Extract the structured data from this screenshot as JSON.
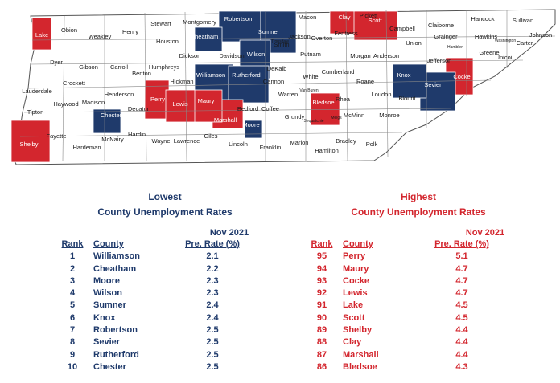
{
  "colors": {
    "lowest": "#1f3a6b",
    "highest": "#d3262e",
    "neutral": "#ffffff",
    "border": "#555555"
  },
  "map": {
    "counties": [
      {
        "name": "Lake",
        "group": "high"
      },
      {
        "name": "Obion",
        "group": "none"
      },
      {
        "name": "Weakley",
        "group": "none"
      },
      {
        "name": "Henry",
        "group": "none"
      },
      {
        "name": "Stewart",
        "group": "none"
      },
      {
        "name": "Montgomery",
        "group": "none"
      },
      {
        "name": "Robertson",
        "group": "low"
      },
      {
        "name": "Sumner",
        "group": "low"
      },
      {
        "name": "Macon",
        "group": "none"
      },
      {
        "name": "Clay",
        "group": "high"
      },
      {
        "name": "Pickett",
        "group": "none"
      },
      {
        "name": "Scott",
        "group": "high"
      },
      {
        "name": "Campbell",
        "group": "none"
      },
      {
        "name": "Claiborne",
        "group": "none"
      },
      {
        "name": "Hancock",
        "group": "none"
      },
      {
        "name": "Hawkins",
        "group": "none"
      },
      {
        "name": "Sullivan",
        "group": "none"
      },
      {
        "name": "Washington",
        "group": "none"
      },
      {
        "name": "Johnson",
        "group": "none"
      },
      {
        "name": "Carter",
        "group": "none"
      },
      {
        "name": "Unicoi",
        "group": "none"
      },
      {
        "name": "Greene",
        "group": "none"
      },
      {
        "name": "Hamblen",
        "group": "none"
      },
      {
        "name": "Grainger",
        "group": "none"
      },
      {
        "name": "Union",
        "group": "none"
      },
      {
        "name": "Jefferson",
        "group": "none"
      },
      {
        "name": "Cocke",
        "group": "high"
      },
      {
        "name": "Sevier",
        "group": "low"
      },
      {
        "name": "Knox",
        "group": "low"
      },
      {
        "name": "Anderson",
        "group": "none"
      },
      {
        "name": "Blount",
        "group": "none"
      },
      {
        "name": "Loudon",
        "group": "none"
      },
      {
        "name": "Monroe",
        "group": "none"
      },
      {
        "name": "Roane",
        "group": "none"
      },
      {
        "name": "Morgan",
        "group": "none"
      },
      {
        "name": "Fentress",
        "group": "none"
      },
      {
        "name": "Overton",
        "group": "none"
      },
      {
        "name": "Jackson",
        "group": "none"
      },
      {
        "name": "Trousdale",
        "group": "none"
      },
      {
        "name": "Smith",
        "group": "none"
      },
      {
        "name": "Putnam",
        "group": "none"
      },
      {
        "name": "Cumberland",
        "group": "none"
      },
      {
        "name": "White",
        "group": "none"
      },
      {
        "name": "DeKalb",
        "group": "none"
      },
      {
        "name": "Wilson",
        "group": "low"
      },
      {
        "name": "Davidson",
        "group": "none"
      },
      {
        "name": "Cheatham",
        "group": "low"
      },
      {
        "name": "Dickson",
        "group": "none"
      },
      {
        "name": "Houston",
        "group": "none"
      },
      {
        "name": "Humphreys",
        "group": "none"
      },
      {
        "name": "Benton",
        "group": "none"
      },
      {
        "name": "Carroll",
        "group": "none"
      },
      {
        "name": "Gibson",
        "group": "none"
      },
      {
        "name": "Dyer",
        "group": "none"
      },
      {
        "name": "Lauderdale",
        "group": "none"
      },
      {
        "name": "Crockett",
        "group": "none"
      },
      {
        "name": "Haywood",
        "group": "none"
      },
      {
        "name": "Madison",
        "group": "none"
      },
      {
        "name": "Henderson",
        "group": "none"
      },
      {
        "name": "Decatur",
        "group": "none"
      },
      {
        "name": "Perry",
        "group": "high"
      },
      {
        "name": "Hickman",
        "group": "none"
      },
      {
        "name": "Williamson",
        "group": "low"
      },
      {
        "name": "Rutherford",
        "group": "low"
      },
      {
        "name": "Cannon",
        "group": "none"
      },
      {
        "name": "Warren",
        "group": "none"
      },
      {
        "name": "Van Buren",
        "group": "none"
      },
      {
        "name": "Bledsoe",
        "group": "high"
      },
      {
        "name": "Rhea",
        "group": "none"
      },
      {
        "name": "Meigs",
        "group": "none"
      },
      {
        "name": "McMinn",
        "group": "none"
      },
      {
        "name": "Polk",
        "group": "none"
      },
      {
        "name": "Bradley",
        "group": "none"
      },
      {
        "name": "Hamilton",
        "group": "none"
      },
      {
        "name": "Sequatchie",
        "group": "none"
      },
      {
        "name": "Grundy",
        "group": "none"
      },
      {
        "name": "Marion",
        "group": "none"
      },
      {
        "name": "Franklin",
        "group": "none"
      },
      {
        "name": "Coffee",
        "group": "none"
      },
      {
        "name": "Moore",
        "group": "low"
      },
      {
        "name": "Bedford",
        "group": "none"
      },
      {
        "name": "Marshall",
        "group": "high"
      },
      {
        "name": "Maury",
        "group": "high"
      },
      {
        "name": "Lewis",
        "group": "high"
      },
      {
        "name": "Lincoln",
        "group": "none"
      },
      {
        "name": "Giles",
        "group": "none"
      },
      {
        "name": "Lawrence",
        "group": "none"
      },
      {
        "name": "Wayne",
        "group": "none"
      },
      {
        "name": "Hardin",
        "group": "none"
      },
      {
        "name": "McNairy",
        "group": "none"
      },
      {
        "name": "Chester",
        "group": "low"
      },
      {
        "name": "Hardeman",
        "group": "none"
      },
      {
        "name": "Fayette",
        "group": "none"
      },
      {
        "name": "Shelby",
        "group": "high"
      },
      {
        "name": "Tipton",
        "group": "none"
      }
    ]
  },
  "lowest": {
    "title_line1": "Lowest",
    "title_line2": "County Unemployment Rates",
    "period": "Nov 2021",
    "col_rank": "Rank",
    "col_county": "County",
    "col_rate": "Pre. Rate (%)",
    "rows": [
      {
        "rank": "1",
        "county": "Williamson",
        "rate": "2.1"
      },
      {
        "rank": "2",
        "county": "Cheatham",
        "rate": "2.2"
      },
      {
        "rank": "3",
        "county": "Moore",
        "rate": "2.3"
      },
      {
        "rank": "4",
        "county": "Wilson",
        "rate": "2.3"
      },
      {
        "rank": "5",
        "county": "Sumner",
        "rate": "2.4"
      },
      {
        "rank": "6",
        "county": "Knox",
        "rate": "2.4"
      },
      {
        "rank": "7",
        "county": "Robertson",
        "rate": "2.5"
      },
      {
        "rank": "8",
        "county": "Sevier",
        "rate": "2.5"
      },
      {
        "rank": "9",
        "county": "Rutherford",
        "rate": "2.5"
      },
      {
        "rank": "10",
        "county": "Chester",
        "rate": "2.5"
      }
    ]
  },
  "highest": {
    "title_line1": "Highest",
    "title_line2": "County Unemployment Rates",
    "period": "Nov 2021",
    "col_rank": "Rank",
    "col_county": "County",
    "col_rate": "Pre. Rate (%)",
    "rows": [
      {
        "rank": "95",
        "county": "Perry",
        "rate": "5.1"
      },
      {
        "rank": "94",
        "county": "Maury",
        "rate": "4.7"
      },
      {
        "rank": "93",
        "county": "Cocke",
        "rate": "4.7"
      },
      {
        "rank": "92",
        "county": "Lewis",
        "rate": "4.7"
      },
      {
        "rank": "91",
        "county": "Lake",
        "rate": "4.5"
      },
      {
        "rank": "90",
        "county": "Scott",
        "rate": "4.5"
      },
      {
        "rank": "89",
        "county": "Shelby",
        "rate": "4.4"
      },
      {
        "rank": "88",
        "county": "Clay",
        "rate": "4.4"
      },
      {
        "rank": "87",
        "county": "Marshall",
        "rate": "4.4"
      },
      {
        "rank": "86",
        "county": "Bledsoe",
        "rate": "4.3"
      }
    ]
  }
}
